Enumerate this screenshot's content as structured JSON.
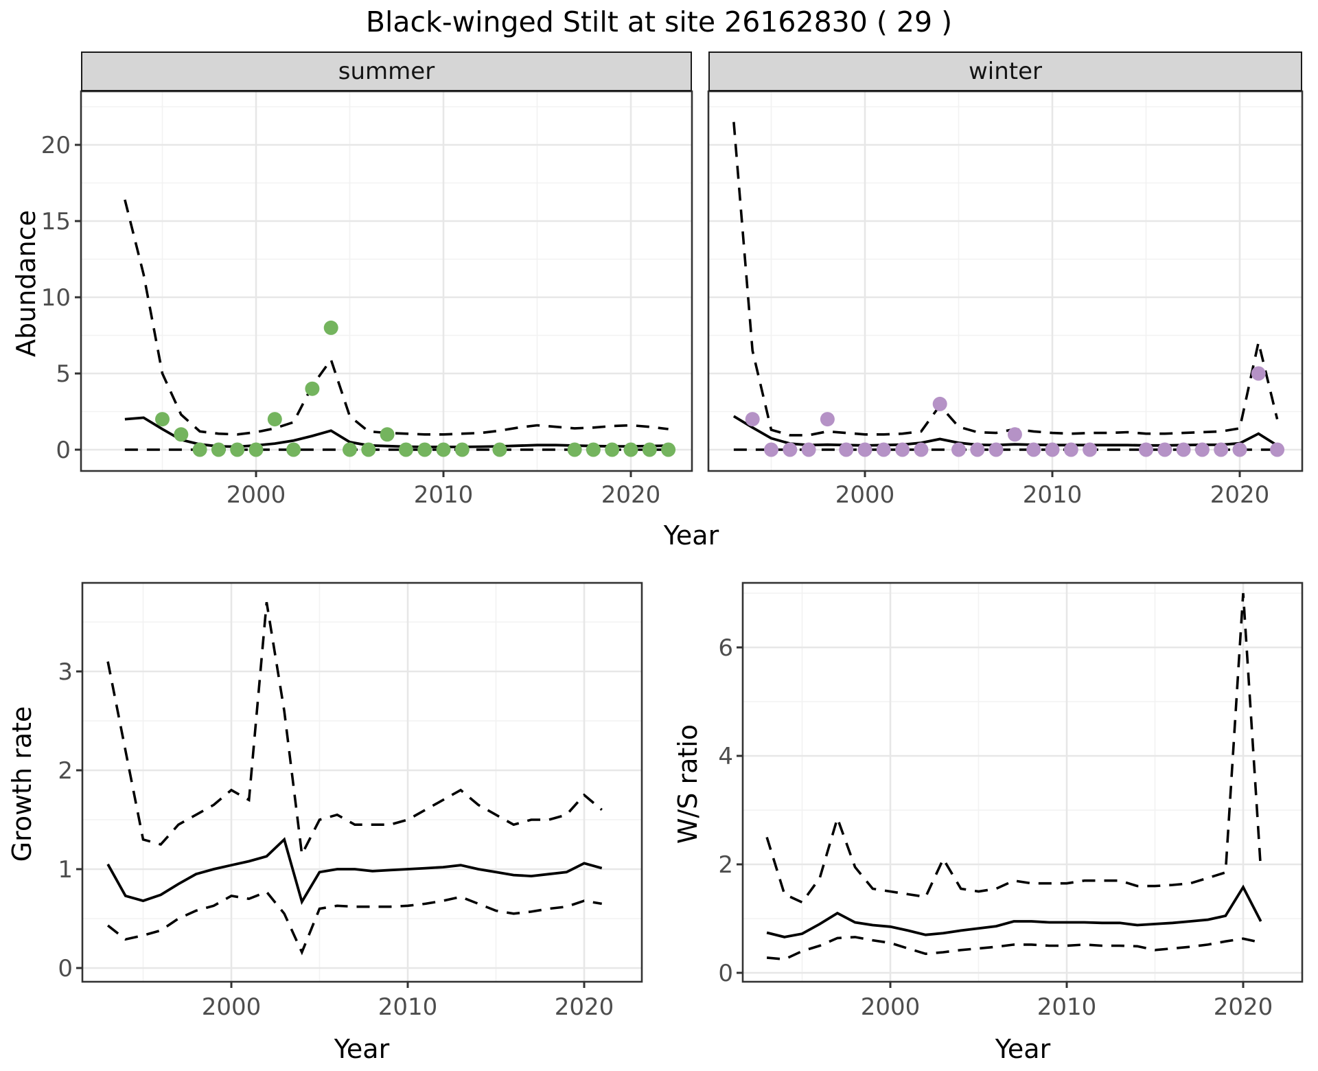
{
  "title": "Black-winged Stilt at site 26162830 ( 29 )",
  "facet_labels": {
    "summer": "summer",
    "winter": "winter"
  },
  "axis_titles": {
    "abundance": "Abundance",
    "year_top": "Year",
    "growth_rate": "Growth rate",
    "year_bottom_left": "Year",
    "ws_ratio": "W/S ratio",
    "year_bottom_right": "Year"
  },
  "colors": {
    "summer_point": "#74b45e",
    "winter_point": "#b592c6",
    "line": "#000000",
    "grid_major": "#e7e7e7",
    "grid_minor": "#f2f2f2",
    "panel_border": "#333333",
    "strip_bg": "#d6d6d6",
    "tick_label": "#4d4d4d",
    "tick_mark": "#333333"
  },
  "chart_data": [
    {
      "id": "abundance_summer",
      "type": "line",
      "facet": "summer",
      "xlabel": "Year",
      "ylabel": "Abundance",
      "x_ticks": [
        2000,
        2010,
        2020
      ],
      "x_minor": [
        1995,
        2005,
        2015
      ],
      "y_ticks": [
        0,
        5,
        10,
        15,
        20
      ],
      "y_minor": [
        2.5,
        7.5,
        12.5,
        17.5,
        22.5
      ],
      "xlim": [
        1991.6,
        2023.4
      ],
      "ylim": [
        -1.5,
        23.5
      ],
      "years": [
        1993,
        1994,
        1995,
        1996,
        1997,
        1998,
        1999,
        2000,
        2001,
        2002,
        2003,
        2004,
        2005,
        2006,
        2007,
        2008,
        2009,
        2010,
        2011,
        2012,
        2013,
        2014,
        2015,
        2016,
        2017,
        2018,
        2019,
        2020,
        2021,
        2022
      ],
      "fitted": [
        2.0,
        2.1,
        1.35,
        0.65,
        0.35,
        0.22,
        0.2,
        0.28,
        0.4,
        0.6,
        0.9,
        1.25,
        0.5,
        0.28,
        0.24,
        0.2,
        0.18,
        0.18,
        0.18,
        0.2,
        0.22,
        0.26,
        0.3,
        0.3,
        0.27,
        0.24,
        0.22,
        0.22,
        0.24,
        0.26
      ],
      "ci_upper": [
        16.4,
        11.5,
        5.0,
        2.3,
        1.2,
        1.05,
        1.0,
        1.15,
        1.4,
        1.8,
        4.2,
        5.9,
        2.2,
        1.2,
        1.1,
        1.05,
        1.0,
        1.0,
        1.05,
        1.1,
        1.25,
        1.45,
        1.6,
        1.5,
        1.4,
        1.45,
        1.55,
        1.6,
        1.5,
        1.35
      ],
      "ci_lower": [
        0,
        0,
        0,
        0,
        0,
        0,
        0,
        0,
        0,
        0,
        0,
        0,
        0,
        0,
        0,
        0,
        0,
        0,
        0,
        0,
        0,
        0,
        0,
        0,
        0,
        0,
        0,
        0,
        0,
        0
      ],
      "observed": {
        "years": [
          1995,
          1996,
          1997,
          1998,
          1999,
          2000,
          2001,
          2002,
          2003,
          2004,
          2005,
          2006,
          2007,
          2008,
          2009,
          2010,
          2011,
          2013,
          2017,
          2018,
          2019,
          2020,
          2021,
          2022
        ],
        "values": [
          2,
          1,
          0,
          0,
          0,
          0,
          2,
          0,
          4,
          8,
          0,
          0,
          1,
          0,
          0,
          0,
          0,
          0,
          0,
          0,
          0,
          0,
          0,
          0
        ]
      },
      "point_color": "#74b45e"
    },
    {
      "id": "abundance_winter",
      "type": "line",
      "facet": "winter",
      "xlabel": "Year",
      "ylabel": "Abundance",
      "x_ticks": [
        2000,
        2010,
        2020
      ],
      "x_minor": [
        1995,
        2005,
        2015
      ],
      "y_ticks": [
        0,
        5,
        10,
        15,
        20
      ],
      "y_minor": [
        2.5,
        7.5,
        12.5,
        17.5,
        22.5
      ],
      "xlim": [
        1991.6,
        2023.4
      ],
      "ylim": [
        -1.5,
        23.5
      ],
      "years": [
        1993,
        1994,
        1995,
        1996,
        1997,
        1998,
        1999,
        2000,
        2001,
        2002,
        2003,
        2004,
        2005,
        2006,
        2007,
        2008,
        2009,
        2010,
        2011,
        2012,
        2013,
        2014,
        2015,
        2016,
        2017,
        2018,
        2019,
        2020,
        2021,
        2022
      ],
      "fitted": [
        2.2,
        1.45,
        0.75,
        0.4,
        0.3,
        0.33,
        0.3,
        0.28,
        0.3,
        0.33,
        0.45,
        0.7,
        0.45,
        0.32,
        0.3,
        0.35,
        0.32,
        0.3,
        0.3,
        0.3,
        0.3,
        0.3,
        0.28,
        0.28,
        0.3,
        0.32,
        0.32,
        0.42,
        1.05,
        0.28
      ],
      "ci_upper": [
        21.5,
        6.5,
        1.3,
        0.95,
        0.95,
        1.2,
        1.1,
        1.0,
        1.0,
        1.05,
        1.2,
        2.9,
        1.5,
        1.15,
        1.1,
        1.35,
        1.2,
        1.1,
        1.05,
        1.1,
        1.1,
        1.15,
        1.05,
        1.05,
        1.1,
        1.15,
        1.2,
        1.4,
        7.05,
        2.0
      ],
      "ci_lower": [
        0,
        0,
        0,
        0,
        0,
        0,
        0,
        0,
        0,
        0,
        0,
        0,
        0,
        0,
        0,
        0,
        0,
        0,
        0,
        0,
        0,
        0,
        0,
        0,
        0,
        0,
        0,
        0,
        0,
        0
      ],
      "observed": {
        "years": [
          1994,
          1995,
          1996,
          1997,
          1998,
          1999,
          2000,
          2001,
          2002,
          2003,
          2004,
          2005,
          2006,
          2007,
          2008,
          2009,
          2010,
          2011,
          2012,
          2015,
          2016,
          2017,
          2018,
          2019,
          2020,
          2021,
          2022
        ],
        "values": [
          2,
          0,
          0,
          0,
          2,
          0,
          0,
          0,
          0,
          0,
          3,
          0,
          0,
          0,
          1,
          0,
          0,
          0,
          0,
          0,
          0,
          0,
          0,
          0,
          0,
          5,
          0
        ]
      },
      "point_color": "#b592c6"
    },
    {
      "id": "growth_rate",
      "type": "line",
      "xlabel": "Year",
      "ylabel": "Growth rate",
      "x_ticks": [
        2000,
        2010,
        2020
      ],
      "x_minor": [
        1995,
        2005,
        2015
      ],
      "y_ticks": [
        0,
        1,
        2,
        3
      ],
      "y_minor": [
        0.5,
        1.5,
        2.5,
        3.5
      ],
      "xlim": [
        1991.6,
        2023.4
      ],
      "ylim": [
        -0.15,
        3.9
      ],
      "years": [
        1993,
        1994,
        1995,
        1996,
        1997,
        1998,
        1999,
        2000,
        2001,
        2002,
        2003,
        2004,
        2005,
        2006,
        2007,
        2008,
        2009,
        2010,
        2011,
        2012,
        2013,
        2014,
        2015,
        2016,
        2017,
        2018,
        2019,
        2020,
        2021
      ],
      "fitted": [
        1.05,
        0.73,
        0.68,
        0.74,
        0.85,
        0.95,
        1.0,
        1.04,
        1.08,
        1.13,
        1.3,
        0.67,
        0.97,
        1.0,
        1.0,
        0.98,
        0.99,
        1.0,
        1.01,
        1.02,
        1.04,
        1.0,
        0.97,
        0.94,
        0.93,
        0.95,
        0.97,
        1.06,
        1.01
      ],
      "ci_upper": [
        3.1,
        2.2,
        1.3,
        1.25,
        1.45,
        1.55,
        1.65,
        1.8,
        1.7,
        3.7,
        2.6,
        1.15,
        1.5,
        1.55,
        1.45,
        1.45,
        1.45,
        1.5,
        1.6,
        1.7,
        1.8,
        1.65,
        1.55,
        1.45,
        1.5,
        1.5,
        1.55,
        1.75,
        1.6
      ],
      "ci_lower": [
        0.43,
        0.29,
        0.33,
        0.38,
        0.5,
        0.58,
        0.63,
        0.73,
        0.7,
        0.77,
        0.55,
        0.16,
        0.6,
        0.63,
        0.62,
        0.62,
        0.62,
        0.63,
        0.65,
        0.68,
        0.72,
        0.65,
        0.58,
        0.55,
        0.57,
        0.6,
        0.62,
        0.68,
        0.65
      ]
    },
    {
      "id": "ws_ratio",
      "type": "line",
      "xlabel": "Year",
      "ylabel": "W/S ratio",
      "x_ticks": [
        2000,
        2010,
        2020
      ],
      "x_minor": [
        1995,
        2005,
        2015
      ],
      "y_ticks": [
        0,
        2,
        4,
        6
      ],
      "y_minor": [
        1,
        3,
        5,
        7
      ],
      "xlim": [
        1991.6,
        2023.4
      ],
      "ylim": [
        -0.15,
        7.2
      ],
      "years": [
        1993,
        1994,
        1995,
        1996,
        1997,
        1998,
        1999,
        2000,
        2001,
        2002,
        2003,
        2004,
        2005,
        2006,
        2007,
        2008,
        2009,
        2010,
        2011,
        2012,
        2013,
        2014,
        2015,
        2016,
        2017,
        2018,
        2019,
        2020,
        2021
      ],
      "fitted": [
        0.74,
        0.66,
        0.72,
        0.9,
        1.1,
        0.93,
        0.88,
        0.85,
        0.78,
        0.7,
        0.73,
        0.78,
        0.82,
        0.86,
        0.95,
        0.95,
        0.93,
        0.93,
        0.93,
        0.92,
        0.92,
        0.88,
        0.9,
        0.92,
        0.95,
        0.98,
        1.05,
        1.58,
        0.95
      ],
      "ci_upper": [
        2.5,
        1.45,
        1.3,
        1.75,
        2.85,
        1.95,
        1.55,
        1.5,
        1.45,
        1.4,
        2.1,
        1.55,
        1.5,
        1.55,
        1.7,
        1.65,
        1.65,
        1.65,
        1.7,
        1.7,
        1.7,
        1.6,
        1.6,
        1.62,
        1.65,
        1.75,
        1.85,
        7.0,
        1.9
      ],
      "ci_lower": [
        0.28,
        0.25,
        0.4,
        0.5,
        0.64,
        0.66,
        0.6,
        0.55,
        0.45,
        0.35,
        0.38,
        0.42,
        0.45,
        0.48,
        0.52,
        0.52,
        0.5,
        0.5,
        0.52,
        0.5,
        0.5,
        0.49,
        0.42,
        0.45,
        0.48,
        0.52,
        0.58,
        0.63,
        0.56
      ]
    }
  ]
}
